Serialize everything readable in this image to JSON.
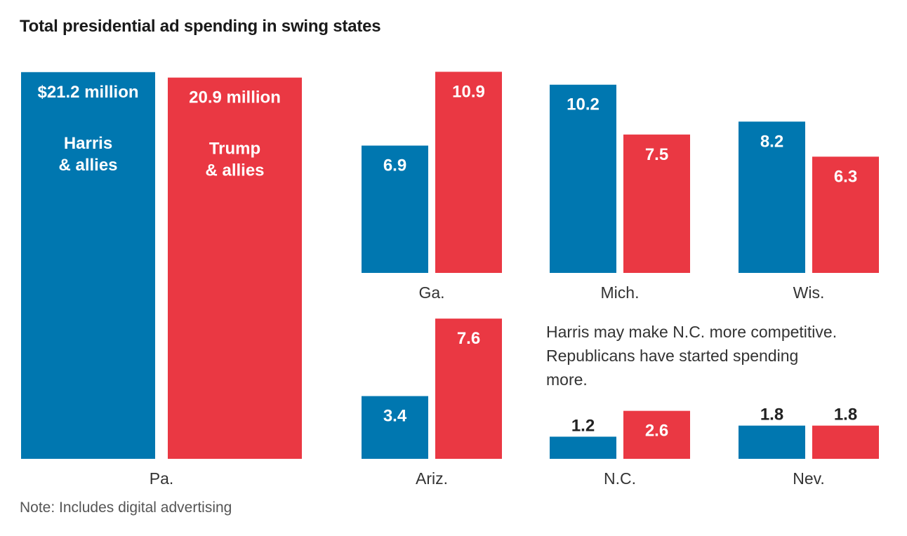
{
  "chart_data": {
    "type": "bar",
    "title": "Total presidential ad spending in swing states",
    "unit": "million dollars",
    "series": [
      {
        "name": "Harris & allies",
        "color": "#0077b0"
      },
      {
        "name": "Trump & allies",
        "color": "#ea3843"
      }
    ],
    "panels": [
      {
        "state": "Pa.",
        "values": [
          21.2,
          20.9
        ],
        "labels": [
          "$21.2 million",
          "20.9 million"
        ],
        "series_labels": [
          "Harris\n& allies",
          "Trump\n& allies"
        ]
      },
      {
        "state": "Ga.",
        "values": [
          6.9,
          10.9
        ],
        "labels": [
          "6.9",
          "10.9"
        ]
      },
      {
        "state": "Mich.",
        "values": [
          10.2,
          7.5
        ],
        "labels": [
          "10.2",
          "7.5"
        ]
      },
      {
        "state": "Wis.",
        "values": [
          8.2,
          6.3
        ],
        "labels": [
          "8.2",
          "6.3"
        ]
      },
      {
        "state": "Ariz.",
        "values": [
          3.4,
          7.6
        ],
        "labels": [
          "3.4",
          "7.6"
        ]
      },
      {
        "state": "N.C.",
        "values": [
          1.2,
          2.6
        ],
        "labels": [
          "1.2",
          "2.6"
        ]
      },
      {
        "state": "Nev.",
        "values": [
          1.8,
          1.8
        ],
        "labels": [
          "1.8",
          "1.8"
        ]
      }
    ],
    "annotation": "Harris may make N.C. more competitive. Republicans have started spending more.",
    "note": "Note: Includes digital advertising"
  }
}
